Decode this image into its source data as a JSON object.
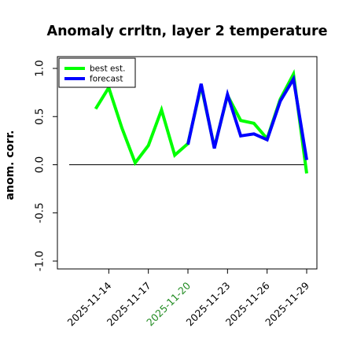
{
  "chart_data": {
    "type": "line",
    "title": "Anomaly crrltn, layer 2 temperature",
    "ylabel": "anom. corr.",
    "xlabel": "",
    "ylim": [
      -1.0,
      1.0
    ],
    "y_ticks": [
      "-1.0",
      "-0.5",
      "0.0",
      "0.5",
      "1.0"
    ],
    "x_tick_labels": [
      "2025-11-14",
      "2025-11-17",
      "2025-11-20",
      "2025-11-23",
      "2025-11-26",
      "2025-11-29"
    ],
    "x_tick_label_colors": [
      "#000000",
      "#000000",
      "#228b22",
      "#000000",
      "#000000",
      "#000000"
    ],
    "x_range": [
      0,
      18
    ],
    "x_tick_positions": [
      3,
      6,
      9,
      12,
      15,
      18
    ],
    "reference_line": 0.0,
    "legend_location": "top-left",
    "series": [
      {
        "name": "best est.",
        "color": "#00ff00",
        "x": [
          2,
          3,
          4,
          5,
          6,
          7,
          8,
          9,
          10,
          11,
          12,
          13,
          14,
          15,
          16,
          17,
          18
        ],
        "values": [
          0.58,
          0.8,
          0.38,
          0.02,
          0.2,
          0.57,
          0.1,
          0.22,
          0.82,
          0.18,
          0.72,
          0.46,
          0.43,
          0.27,
          0.68,
          0.94,
          -0.09
        ]
      },
      {
        "name": "forecast",
        "color": "#0000ff",
        "x": [
          9,
          10,
          11,
          12,
          13,
          14,
          15,
          16,
          17,
          18
        ],
        "values": [
          0.21,
          0.84,
          0.17,
          0.73,
          0.3,
          0.32,
          0.26,
          0.66,
          0.89,
          0.05
        ]
      }
    ]
  }
}
